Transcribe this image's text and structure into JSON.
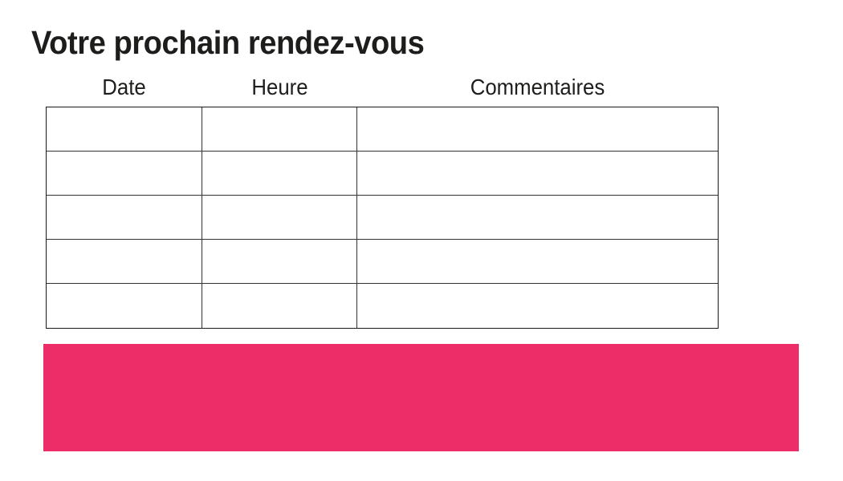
{
  "page": {
    "title": "Votre prochain rendez-vous",
    "background_color": "#ffffff"
  },
  "table": {
    "headers": [
      "Date",
      "Heure",
      "Commentaires"
    ],
    "rows": [
      [
        "",
        "",
        ""
      ],
      [
        "",
        "",
        ""
      ],
      [
        "",
        "",
        ""
      ],
      [
        "",
        "",
        ""
      ],
      [
        "",
        "",
        ""
      ]
    ]
  },
  "banner": {
    "text": "",
    "color": "#ED2D67"
  },
  "colors": {
    "title_text": "#1d1d1b",
    "header_text": "#1d1d1b",
    "table_border_outer": "#1a1a1a",
    "table_border_inner": "#333333",
    "accent_pink": "#ED2D67"
  }
}
